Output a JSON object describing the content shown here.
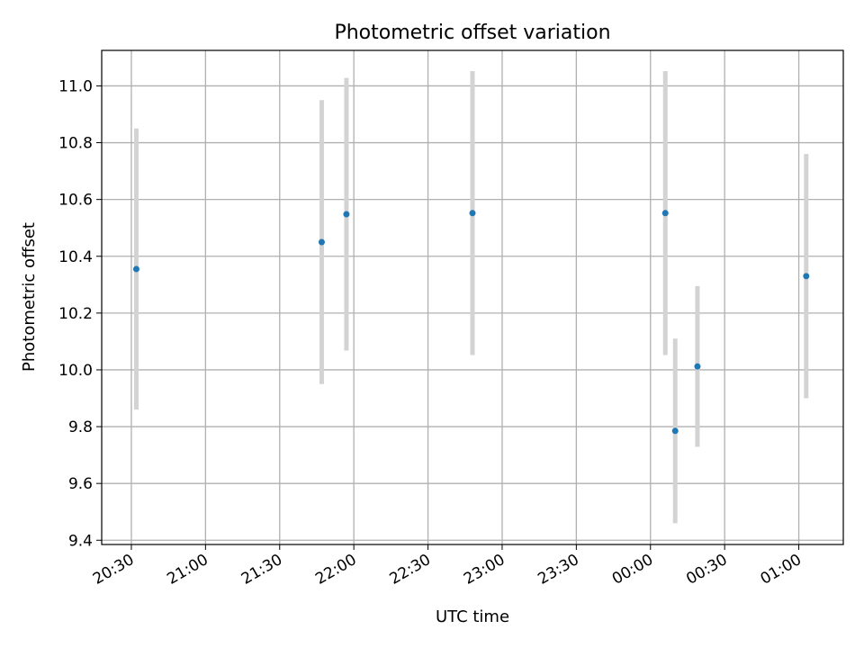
{
  "chart_data": {
    "type": "scatter",
    "title": "Photometric offset variation",
    "xlabel": "UTC time",
    "ylabel": "Photometric offset",
    "xlim": [
      "20:18",
      "01:18"
    ],
    "ylim": [
      9.385,
      11.125
    ],
    "grid": true,
    "x_ticks": [
      "20:30",
      "21:00",
      "21:30",
      "22:00",
      "22:30",
      "23:00",
      "23:30",
      "00:00",
      "00:30",
      "01:00"
    ],
    "y_ticks": [
      "9.4",
      "9.6",
      "9.8",
      "10.0",
      "10.2",
      "10.4",
      "10.6",
      "10.8",
      "11.0"
    ],
    "point_color": "#1f77b4",
    "errorbar_color": "#d3d3d3",
    "points": [
      {
        "x": "20:32",
        "y": 10.355,
        "yerr": 0.495
      },
      {
        "x": "21:47",
        "y": 10.45,
        "yerr": 0.5
      },
      {
        "x": "21:57",
        "y": 10.548,
        "yerr": 0.48
      },
      {
        "x": "22:48",
        "y": 10.552,
        "yerr": 0.5
      },
      {
        "x": "00:06",
        "y": 10.552,
        "yerr": 0.5
      },
      {
        "x": "00:10",
        "y": 9.785,
        "yerr": 0.325
      },
      {
        "x": "00:19",
        "y": 10.012,
        "yerr": 0.283
      },
      {
        "x": "01:03",
        "y": 10.33,
        "yerr": 0.43
      }
    ]
  }
}
